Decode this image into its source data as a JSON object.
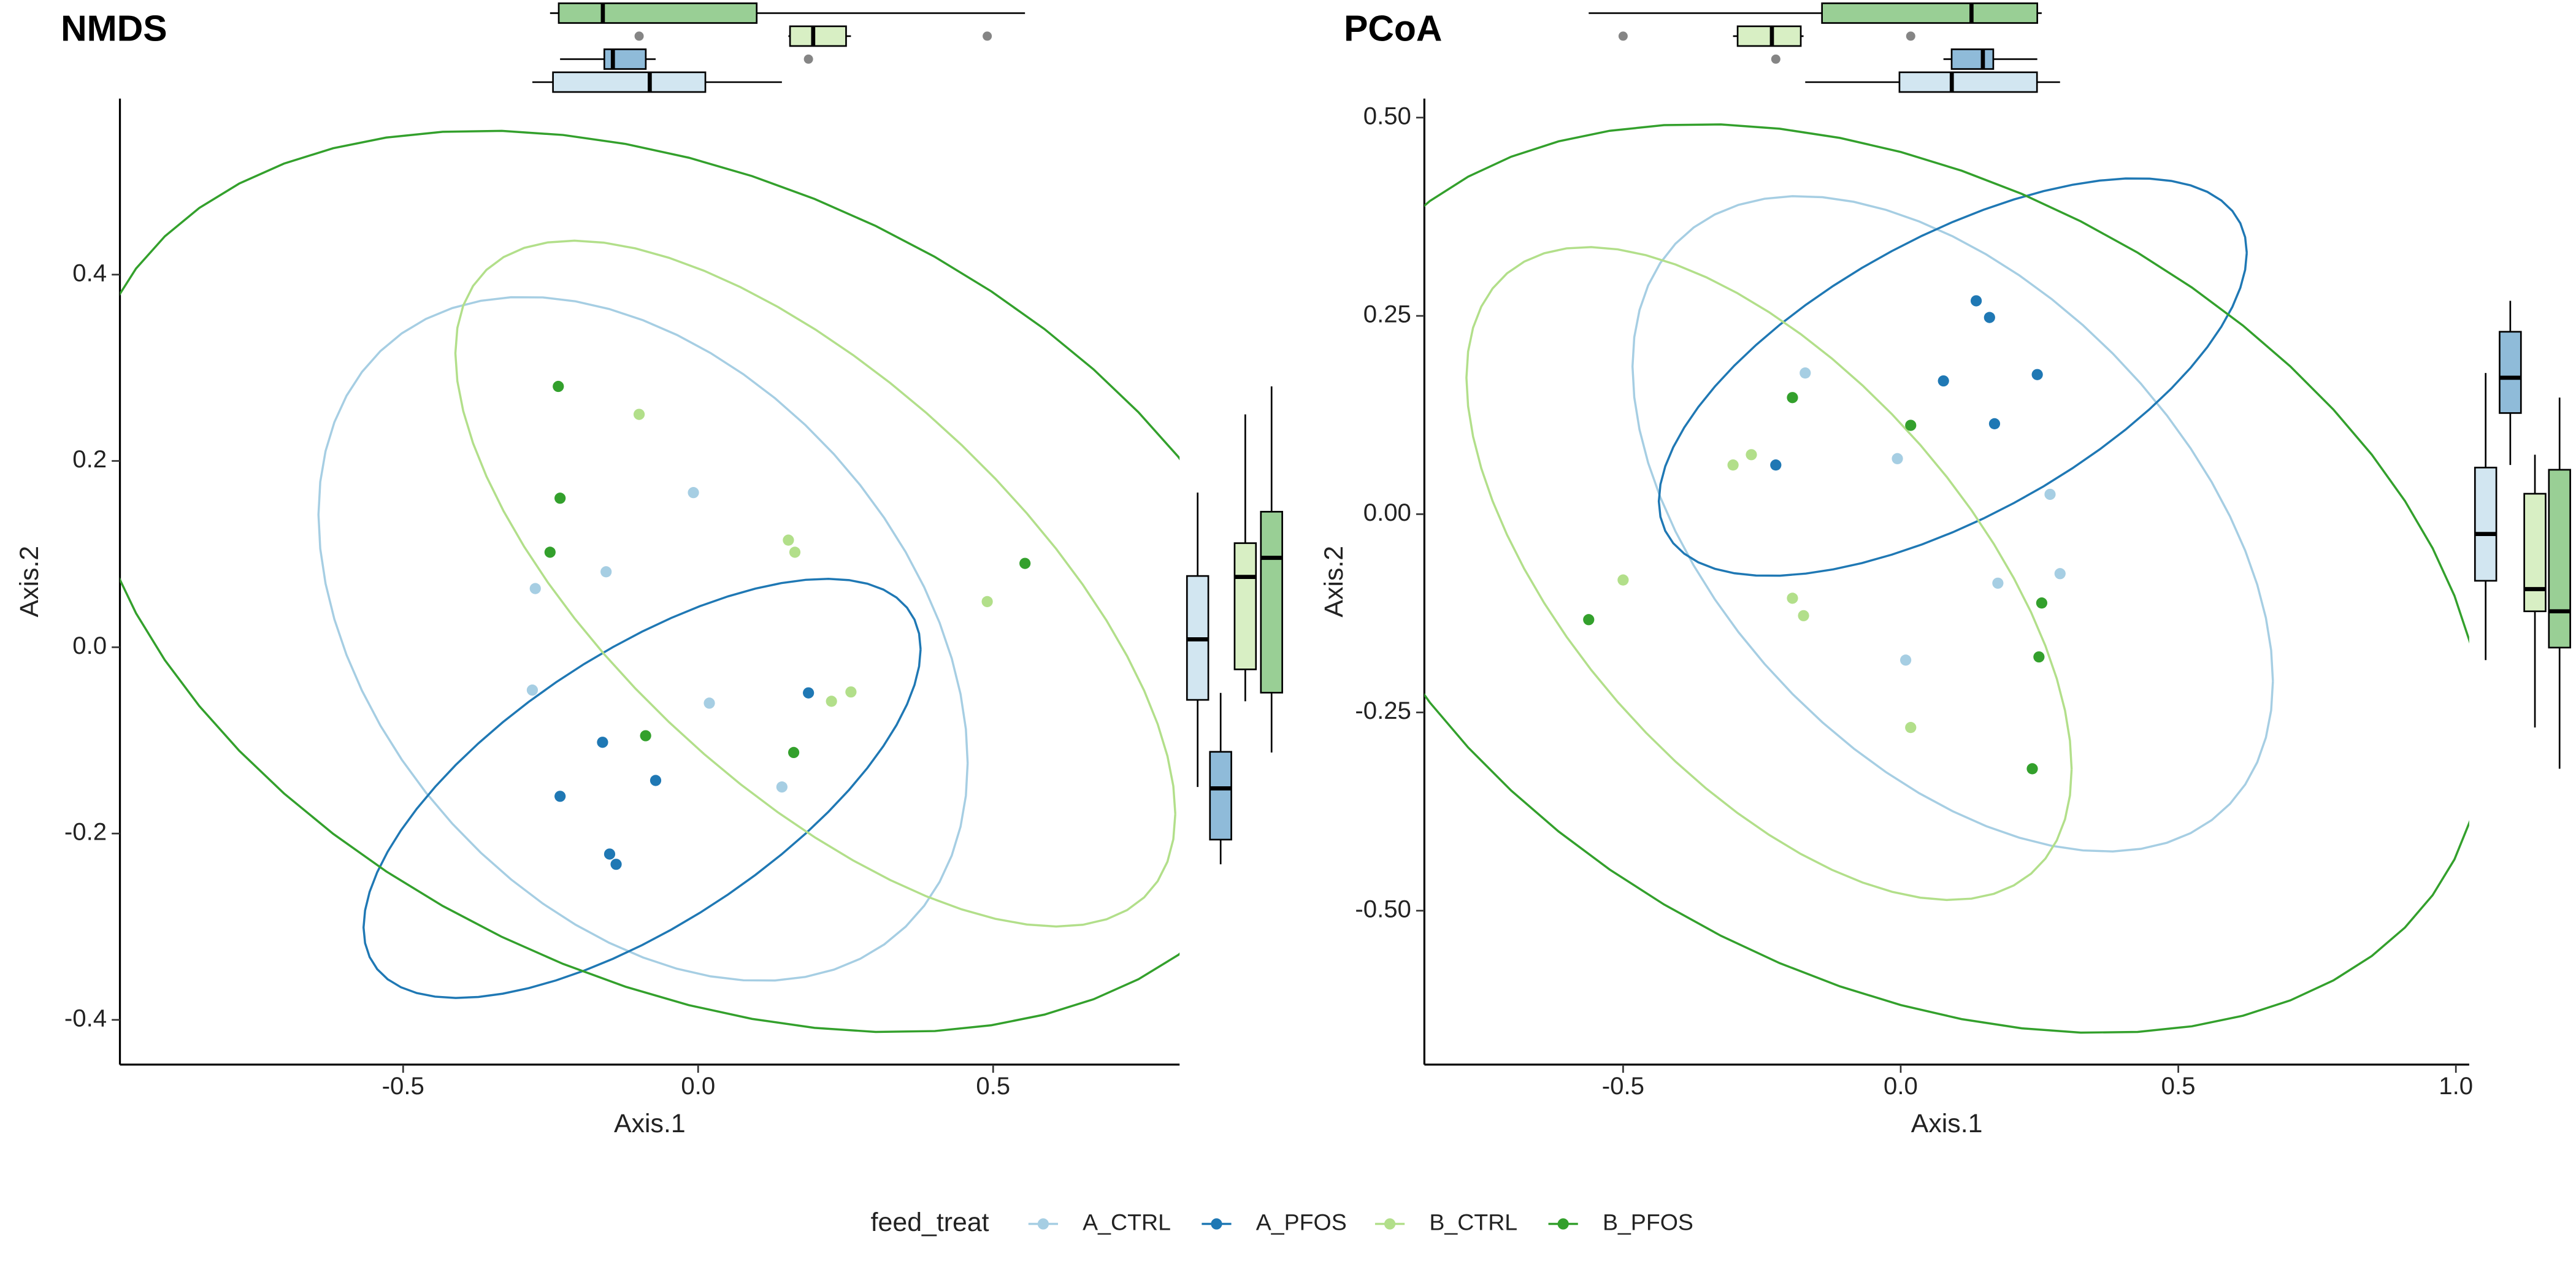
{
  "chart_data": [
    {
      "type": "scatter",
      "title": "NMDS",
      "x_label": "Axis.1",
      "y_label": "Axis.2",
      "legend_title": "feed_treat",
      "ellipse": true,
      "marginal_boxplots": true,
      "grid": false,
      "xlim": [
        -0.98,
        0.816
      ],
      "ylim": [
        -0.448,
        0.589
      ],
      "xticks": [
        -0.5,
        {
          "value": 0,
          "label": "0.0"
        },
        0.5
      ],
      "yticks": [
        -0.4,
        -0.2,
        {
          "value": 0,
          "label": "0.0"
        },
        0.2,
        0.4
      ],
      "series": [
        {
          "name": "A_CTRL",
          "color": "#a6cee3",
          "x": [
            -0.008,
            -0.156,
            -0.276,
            -0.281,
            0.019,
            0.142
          ],
          "y": [
            0.166,
            0.081,
            0.063,
            -0.046,
            -0.06,
            -0.15
          ]
        },
        {
          "name": "A_PFOS",
          "color": "#1f78b4",
          "x": [
            -0.162,
            -0.234,
            -0.072,
            0.187,
            -0.15,
            -0.139
          ],
          "y": [
            -0.102,
            -0.16,
            -0.143,
            -0.049,
            -0.222,
            -0.233
          ]
        },
        {
          "name": "B_CTRL",
          "color": "#b2df8a",
          "x": [
            -0.1,
            0.153,
            0.164,
            0.49,
            0.226,
            0.259
          ],
          "y": [
            0.25,
            0.115,
            0.102,
            0.049,
            -0.058,
            -0.048
          ]
        },
        {
          "name": "B_PFOS",
          "color": "#33a02c",
          "x": [
            -0.237,
            -0.234,
            -0.251,
            -0.089,
            0.162,
            0.554
          ],
          "y": [
            0.28,
            0.16,
            0.102,
            -0.095,
            -0.113,
            0.09
          ]
        }
      ]
    },
    {
      "type": "scatter",
      "title": "PCoA",
      "x_label": "Axis.1",
      "y_label": "Axis.2",
      "ellipse": true,
      "marginal_boxplots": true,
      "grid": false,
      "xlim": [
        -0.858,
        1.024
      ],
      "ylim": [
        -0.694,
        0.524
      ],
      "xticks": [
        -0.5,
        {
          "value": 0,
          "label": "0.0"
        },
        0.5,
        {
          "value": 1,
          "label": "1.0"
        }
      ],
      "yticks": [
        {
          "value": -0.5,
          "label": "-0.50"
        },
        -0.25,
        {
          "value": 0,
          "label": "0.00"
        },
        0.25,
        {
          "value": 0.5,
          "label": "0.50"
        }
      ],
      "series": [
        {
          "name": "A_CTRL",
          "color": "#a6cee3",
          "x": [
            -0.172,
            -0.006,
            0.269,
            0.175,
            0.287,
            0.009
          ],
          "y": [
            0.178,
            0.07,
            0.025,
            -0.087,
            -0.075,
            -0.184
          ]
        },
        {
          "name": "A_PFOS",
          "color": "#1f78b4",
          "x": [
            0.136,
            0.16,
            0.077,
            0.246,
            0.169,
            -0.225
          ],
          "y": [
            0.269,
            0.248,
            0.168,
            0.176,
            0.114,
            0.062
          ]
        },
        {
          "name": "B_CTRL",
          "color": "#b2df8a",
          "x": [
            -0.269,
            -0.302,
            -0.5,
            -0.195,
            -0.175,
            0.018
          ],
          "y": [
            0.075,
            0.062,
            -0.083,
            -0.106,
            -0.128,
            -0.269
          ]
        },
        {
          "name": "B_PFOS",
          "color": "#33a02c",
          "x": [
            -0.195,
            0.018,
            -0.562,
            0.254,
            0.249,
            0.237
          ],
          "y": [
            0.147,
            0.112,
            -0.133,
            -0.112,
            -0.18,
            -0.321
          ]
        }
      ]
    }
  ]
}
